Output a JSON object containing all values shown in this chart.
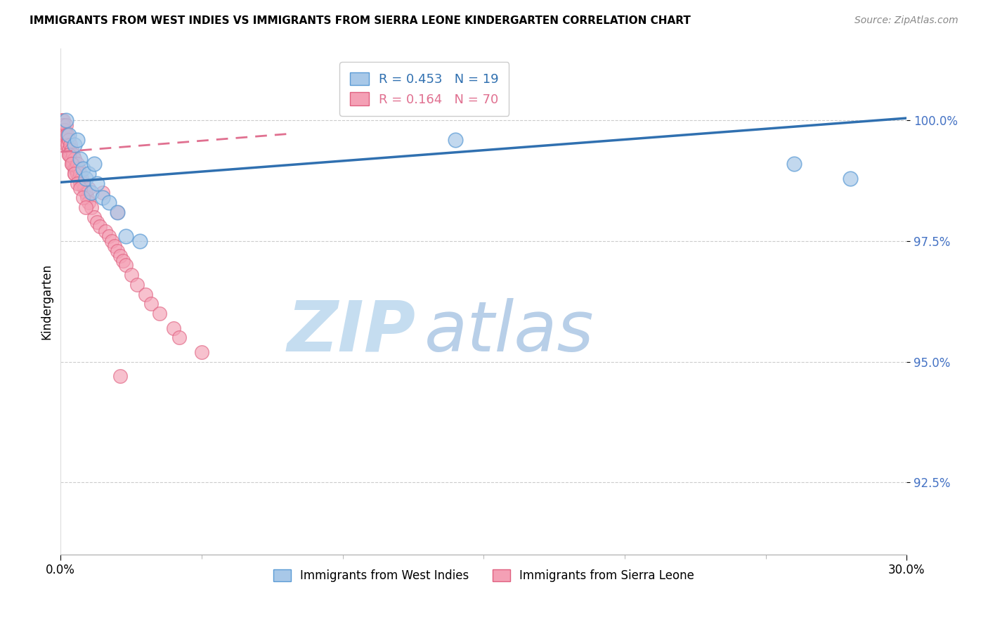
{
  "title": "IMMIGRANTS FROM WEST INDIES VS IMMIGRANTS FROM SIERRA LEONE KINDERGARTEN CORRELATION CHART",
  "source": "Source: ZipAtlas.com",
  "ylabel": "Kindergarten",
  "yticks": [
    100.0,
    97.5,
    95.0,
    92.5
  ],
  "ytick_labels": [
    "100.0%",
    "97.5%",
    "95.0%",
    "92.5%"
  ],
  "xlim": [
    0.0,
    30.0
  ],
  "ylim": [
    91.0,
    101.5
  ],
  "blue_fill": "#a8c8e8",
  "blue_edge": "#5b9bd5",
  "pink_fill": "#f4a0b5",
  "pink_edge": "#e06080",
  "blue_line_color": "#3070b0",
  "pink_line_color": "#e07090",
  "R_blue": 0.453,
  "N_blue": 19,
  "R_pink": 0.164,
  "N_pink": 70,
  "blue_line_x0": 0.0,
  "blue_line_y0": 98.72,
  "blue_line_x1": 30.0,
  "blue_line_y1": 100.05,
  "pink_line_x0": 0.0,
  "pink_line_y0": 99.35,
  "pink_line_x1": 8.0,
  "pink_line_y1": 99.72,
  "blue_points_x": [
    0.2,
    0.3,
    0.5,
    0.6,
    0.7,
    0.8,
    0.9,
    1.0,
    1.1,
    1.2,
    1.3,
    1.5,
    1.7,
    2.0,
    2.3,
    2.8,
    14.0,
    26.0,
    28.0
  ],
  "blue_points_y": [
    100.0,
    99.7,
    99.5,
    99.6,
    99.2,
    99.0,
    98.8,
    98.9,
    98.5,
    99.1,
    98.7,
    98.4,
    98.3,
    98.1,
    97.6,
    97.5,
    99.6,
    99.1,
    98.8
  ],
  "pink_points_x": [
    0.05,
    0.05,
    0.1,
    0.1,
    0.1,
    0.1,
    0.15,
    0.15,
    0.2,
    0.2,
    0.2,
    0.25,
    0.25,
    0.3,
    0.3,
    0.3,
    0.35,
    0.35,
    0.4,
    0.4,
    0.4,
    0.45,
    0.45,
    0.5,
    0.5,
    0.5,
    0.55,
    0.6,
    0.6,
    0.65,
    0.65,
    0.7,
    0.7,
    0.75,
    0.8,
    0.85,
    0.9,
    0.95,
    1.0,
    1.0,
    1.1,
    1.2,
    1.3,
    1.4,
    1.5,
    1.6,
    1.7,
    1.8,
    1.9,
    2.0,
    2.1,
    2.2,
    2.3,
    2.5,
    2.7,
    3.0,
    3.2,
    3.5,
    4.0,
    4.2,
    5.0,
    0.3,
    0.4,
    0.5,
    0.6,
    0.7,
    0.8,
    0.9,
    2.0,
    2.1
  ],
  "pink_points_y": [
    100.0,
    99.9,
    100.0,
    99.9,
    99.8,
    99.7,
    99.8,
    99.6,
    99.9,
    99.7,
    99.5,
    99.7,
    99.5,
    99.6,
    99.4,
    99.3,
    99.5,
    99.3,
    99.4,
    99.2,
    99.1,
    99.3,
    99.1,
    99.2,
    99.0,
    98.9,
    99.0,
    99.1,
    98.9,
    99.0,
    98.8,
    98.9,
    98.7,
    98.8,
    98.7,
    98.6,
    98.5,
    98.4,
    98.6,
    98.3,
    98.2,
    98.0,
    97.9,
    97.8,
    98.5,
    97.7,
    97.6,
    97.5,
    97.4,
    97.3,
    97.2,
    97.1,
    97.0,
    96.8,
    96.6,
    96.4,
    96.2,
    96.0,
    95.7,
    95.5,
    95.2,
    99.3,
    99.1,
    98.9,
    98.7,
    98.6,
    98.4,
    98.2,
    98.1,
    94.7
  ],
  "watermark_zip": "ZIP",
  "watermark_atlas": "atlas",
  "watermark_color_zip": "#c5ddf0",
  "watermark_color_atlas": "#b8cfe8",
  "legend_label_blue": "Immigrants from West Indies",
  "legend_label_pink": "Immigrants from Sierra Leone"
}
